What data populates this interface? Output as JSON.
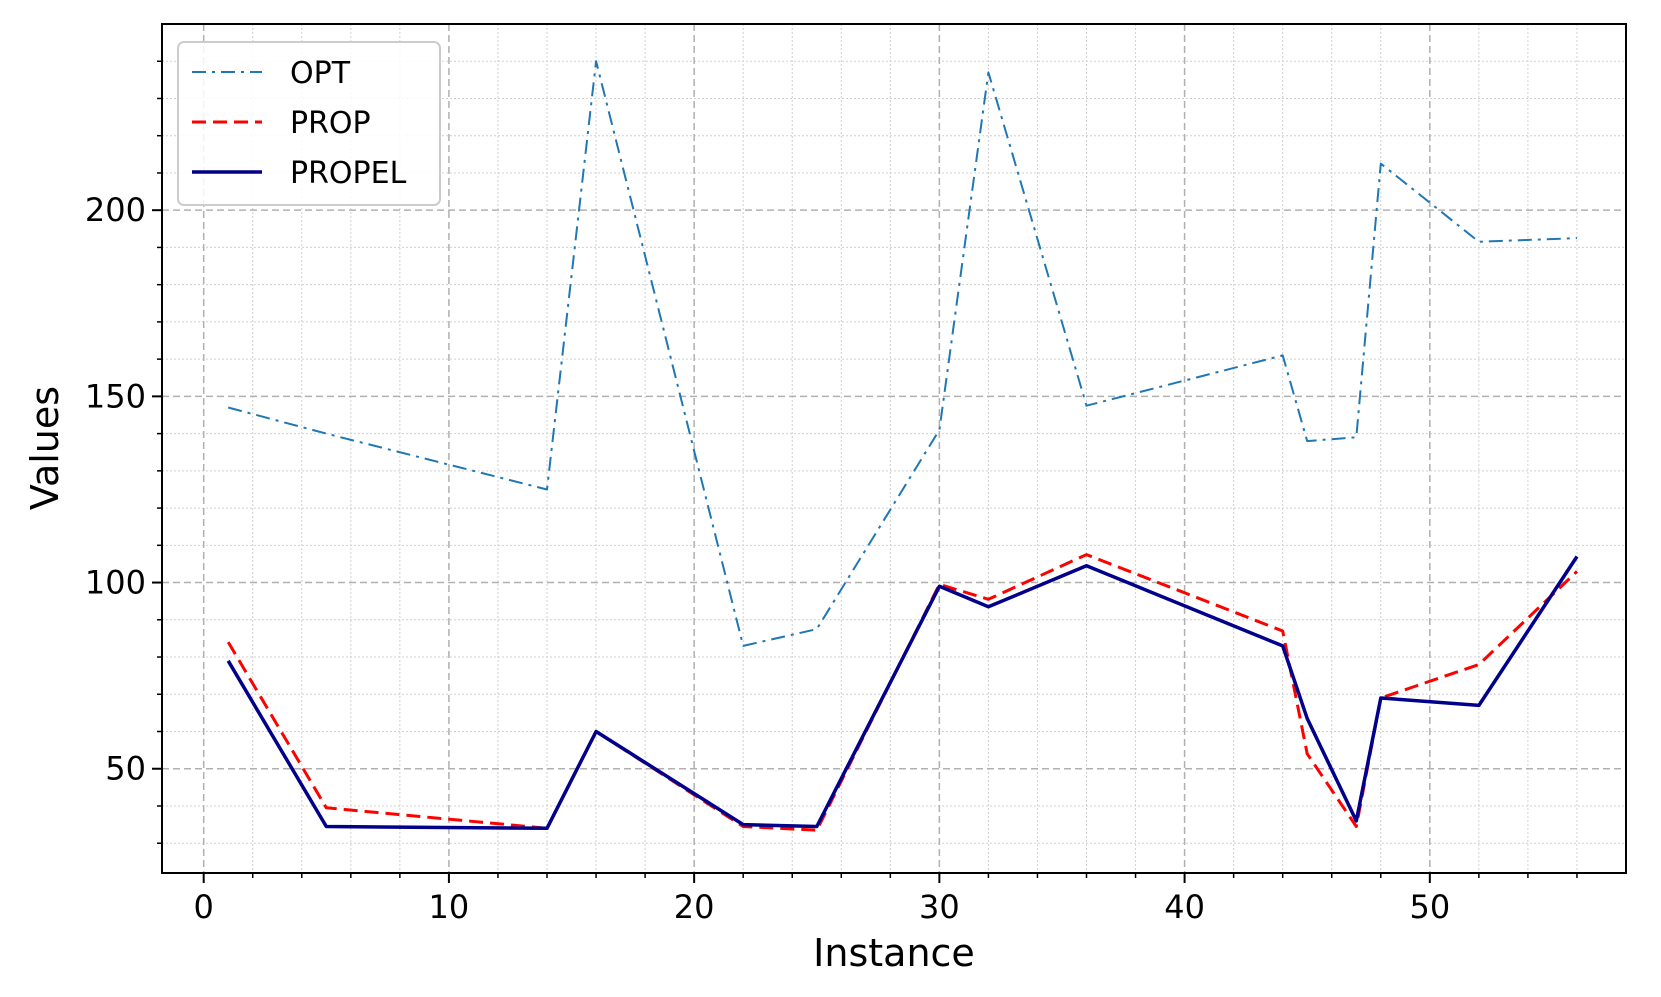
{
  "chart_data": {
    "type": "line",
    "xlabel": "Instance",
    "ylabel": "Values",
    "xlim": [
      -1.7,
      58
    ],
    "ylim": [
      22,
      250
    ],
    "xticks": [
      0,
      10,
      20,
      30,
      40,
      50
    ],
    "yticks": [
      50,
      100,
      150,
      200
    ],
    "grid": true,
    "minor_grid": true,
    "legend_position": "top-left",
    "series": [
      {
        "name": "OPT",
        "color": "#1f77b4",
        "linestyle": "dashdot",
        "x": [
          1,
          5,
          14,
          16,
          22,
          25,
          30,
          32,
          36,
          44,
          45,
          47,
          48,
          52,
          56
        ],
        "y": [
          147,
          140,
          125,
          240,
          83,
          87.5,
          141,
          237,
          147.5,
          161,
          138,
          139,
          212.5,
          191.5,
          192.5
        ]
      },
      {
        "name": "PROP",
        "color": "#ff0000",
        "linestyle": "dashed",
        "x": [
          1,
          5,
          14,
          16,
          22,
          25,
          30,
          32,
          36,
          44,
          45,
          47,
          48,
          52,
          56
        ],
        "y": [
          84,
          39.5,
          34,
          60,
          34.5,
          33.5,
          99.5,
          95.5,
          107.5,
          87,
          54,
          34.5,
          69,
          78,
          103
        ]
      },
      {
        "name": "PROPEL",
        "color": "#00008b",
        "linestyle": "solid",
        "x": [
          1,
          5,
          14,
          16,
          22,
          25,
          30,
          32,
          36,
          44,
          45,
          47,
          48,
          52,
          56
        ],
        "y": [
          79,
          34.5,
          34,
          60,
          35,
          34.5,
          99,
          93.5,
          104.5,
          83,
          63.5,
          36,
          69,
          67,
          107
        ]
      }
    ]
  }
}
